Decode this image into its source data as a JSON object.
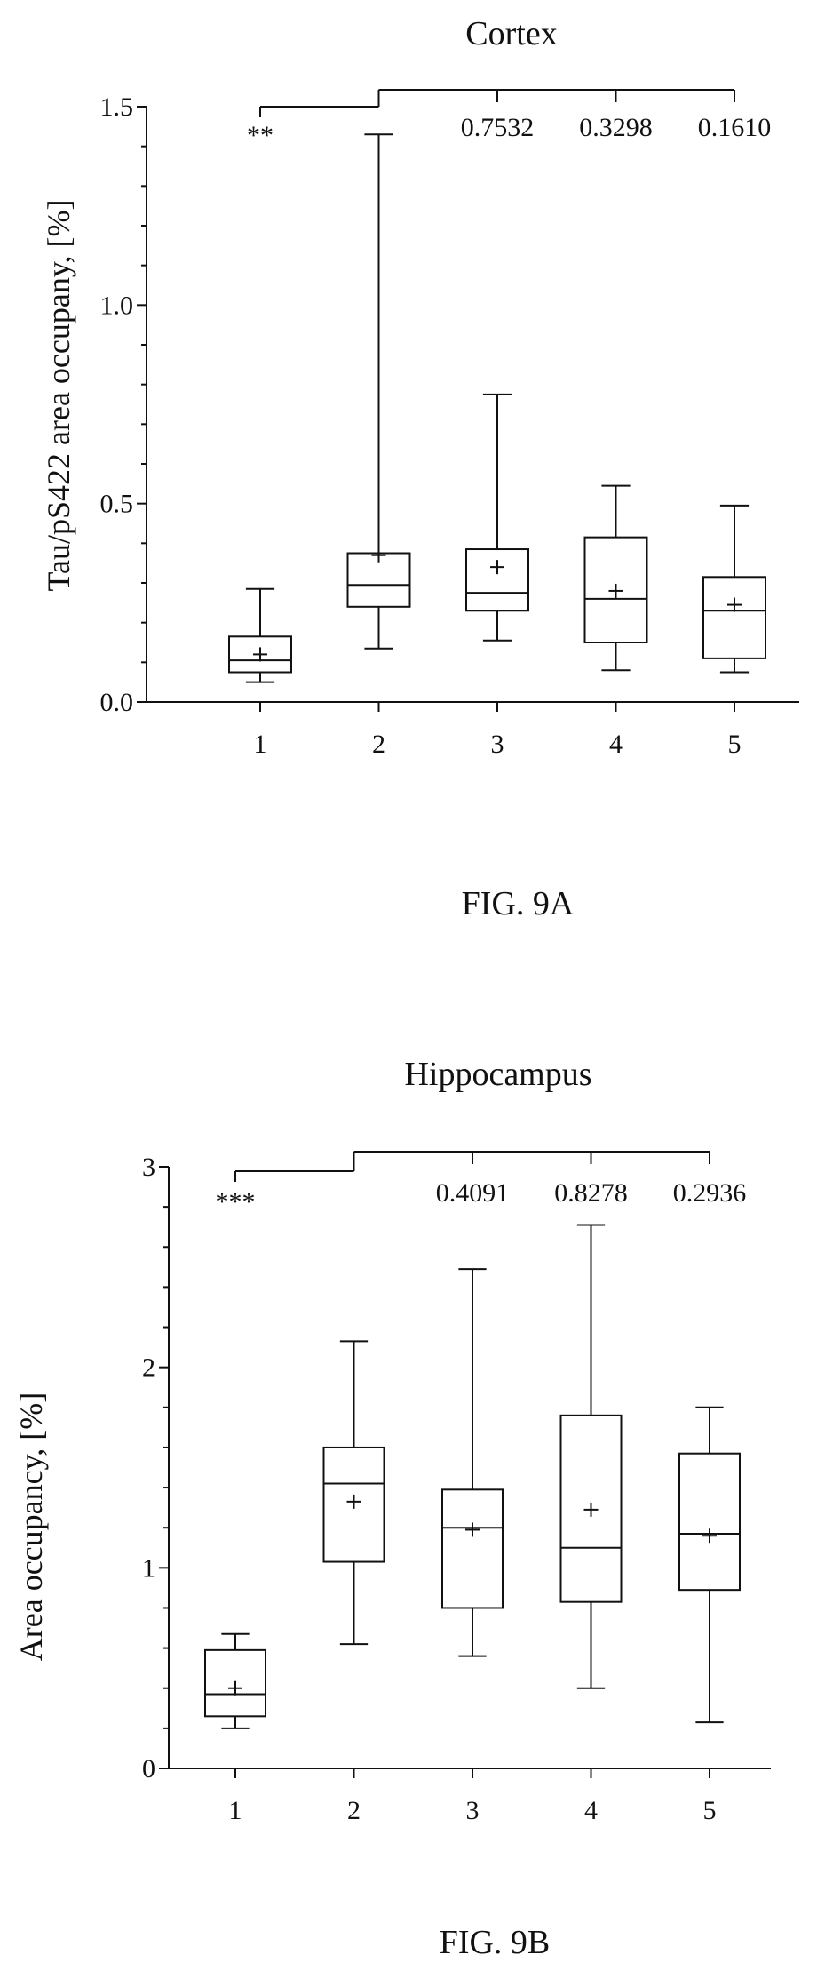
{
  "figures": [
    {
      "fig_label": "FIG. 9A",
      "chart_data": {
        "type": "box",
        "title": "Cortex",
        "ylabel": "Tau/pS422 area occupany, [%]",
        "xlabel": "",
        "categories": [
          "1",
          "2",
          "3",
          "4",
          "5"
        ],
        "ylim": [
          0,
          1.5
        ],
        "yticks": [
          0,
          0.5,
          1.0,
          1.5
        ],
        "ytick_labels": [
          "0.0",
          "0.5",
          "1.0",
          "1.5"
        ],
        "boxes": [
          {
            "category": "1",
            "min": 0.05,
            "q1": 0.075,
            "median": 0.105,
            "q3": 0.165,
            "max": 0.285,
            "mean": 0.12
          },
          {
            "category": "2",
            "min": 0.135,
            "q1": 0.24,
            "median": 0.295,
            "q3": 0.375,
            "max": 1.43,
            "mean": 0.37
          },
          {
            "category": "3",
            "min": 0.155,
            "q1": 0.23,
            "median": 0.275,
            "q3": 0.385,
            "max": 0.775,
            "mean": 0.34
          },
          {
            "category": "4",
            "min": 0.08,
            "q1": 0.15,
            "median": 0.26,
            "q3": 0.415,
            "max": 0.545,
            "mean": 0.28
          },
          {
            "category": "5",
            "min": 0.075,
            "q1": 0.11,
            "median": 0.23,
            "q3": 0.315,
            "max": 0.495,
            "mean": 0.245
          }
        ],
        "annotations": [
          {
            "from": "2",
            "to": "1",
            "label": "**"
          },
          {
            "from": "2",
            "to": "3",
            "label": "0.7532"
          },
          {
            "from": "2",
            "to": "4",
            "label": "0.3298"
          },
          {
            "from": "2",
            "to": "5",
            "label": "0.1610"
          }
        ]
      }
    },
    {
      "fig_label": "FIG. 9B",
      "chart_data": {
        "type": "box",
        "title": "Hippocampus",
        "ylabel": "Area occupancy, [%]",
        "xlabel": "",
        "categories": [
          "1",
          "2",
          "3",
          "4",
          "5"
        ],
        "ylim": [
          0,
          3
        ],
        "yticks": [
          0,
          1,
          2,
          3
        ],
        "ytick_labels": [
          "0",
          "1",
          "2",
          "3"
        ],
        "boxes": [
          {
            "category": "1",
            "min": 0.2,
            "q1": 0.26,
            "median": 0.37,
            "q3": 0.59,
            "max": 0.67,
            "mean": 0.4
          },
          {
            "category": "2",
            "min": 0.62,
            "q1": 1.03,
            "median": 1.42,
            "q3": 1.6,
            "max": 2.13,
            "mean": 1.33
          },
          {
            "category": "3",
            "min": 0.56,
            "q1": 0.8,
            "median": 1.2,
            "q3": 1.39,
            "max": 2.49,
            "mean": 1.19
          },
          {
            "category": "4",
            "min": 0.4,
            "q1": 0.83,
            "median": 1.1,
            "q3": 1.76,
            "max": 2.71,
            "mean": 1.29
          },
          {
            "category": "5",
            "min": 0.23,
            "q1": 0.89,
            "median": 1.17,
            "q3": 1.57,
            "max": 1.8,
            "mean": 1.16
          }
        ],
        "annotations": [
          {
            "from": "2",
            "to": "1",
            "label": "***"
          },
          {
            "from": "2",
            "to": "3",
            "label": "0.4091"
          },
          {
            "from": "2",
            "to": "4",
            "label": "0.8278"
          },
          {
            "from": "2",
            "to": "5",
            "label": "0.2936"
          }
        ]
      }
    }
  ]
}
